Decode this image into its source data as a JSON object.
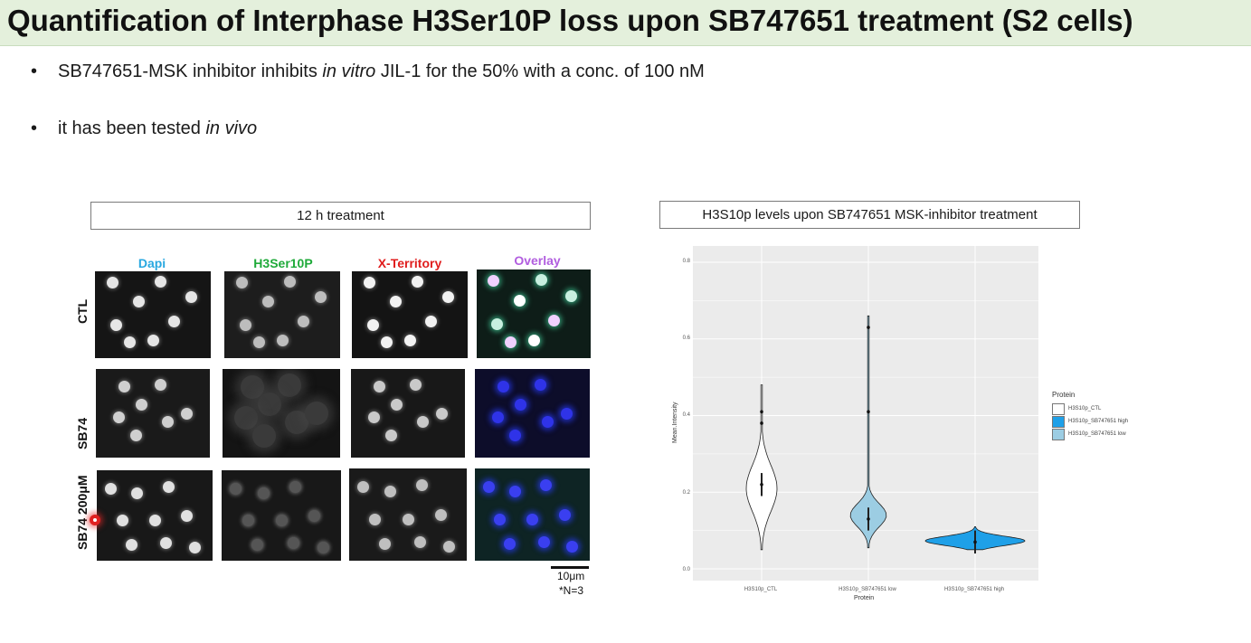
{
  "slide": {
    "title": "Quantification of Interphase H3Ser10P loss upon SB747651 treatment (S2 cells)",
    "bullets": [
      {
        "marker": "•",
        "pre": "SB747651-MSK inhibitor inhibits ",
        "italic": "in vitro",
        "post": " JIL-1 for the 50% with a conc. of 100 nM"
      },
      {
        "marker": "•",
        "pre": "it has been tested ",
        "italic": "in vivo",
        "post": ""
      }
    ]
  },
  "micrograph_panel": {
    "header": "12 h treatment",
    "columns": [
      {
        "label": "Dapi",
        "color": "#29a8e0"
      },
      {
        "label": "H3Ser10P",
        "color": "#1faa3a"
      },
      {
        "label": "X-Territory",
        "color": "#e01d1d"
      },
      {
        "label": "Overlay",
        "color": "#b15ddf"
      }
    ],
    "rows": [
      "CTL",
      "SB74",
      "SB74 200μM"
    ],
    "scale_label": "10μm",
    "n_label": "*N=3"
  },
  "chart": {
    "header": "H3S10p levels upon SB747651 MSK-inhibitor treatment",
    "legend_title": "Protein",
    "legend_items": [
      {
        "label": "H3S10p_CTL",
        "color": "#ffffff"
      },
      {
        "label": "H3S10p_SB747651 high",
        "color": "#1fa0e8"
      },
      {
        "label": "H3S10p_SB747651 low",
        "color": "#9ccde3"
      }
    ],
    "x_title": "Protein",
    "y_title": "Mean.Intensity",
    "y_ticks": [
      "0.0",
      "0.2",
      "0.4",
      "0.6",
      "0.8"
    ],
    "x_ticks": [
      "H3S10p_CTL",
      "H3S10p_SB747651 low",
      "H3S10p_SB747651 high"
    ]
  },
  "chart_data": {
    "type": "violin",
    "title": "",
    "xlabel": "Protein",
    "ylabel": "Mean.Intensity",
    "ylim": [
      0,
      0.8
    ],
    "categories": [
      "H3S10p_CTL",
      "H3S10p_SB747651 low",
      "H3S10p_SB747651 high"
    ],
    "series": [
      {
        "name": "H3S10p_CTL",
        "min": 0.05,
        "max": 0.48,
        "median": 0.22,
        "mode": 0.21,
        "outliers": [
          0.41,
          0.38
        ],
        "color": "#ffffff"
      },
      {
        "name": "H3S10p_SB747651 low",
        "min": 0.055,
        "max": 0.66,
        "median": 0.13,
        "mode": 0.14,
        "outliers": [
          0.63,
          0.41
        ],
        "color": "#9ccde3"
      },
      {
        "name": "H3S10p_SB747651 high",
        "min": 0.05,
        "max": 0.11,
        "median": 0.07,
        "mode": 0.073,
        "outliers": [],
        "color": "#1fa0e8"
      }
    ],
    "grid": true,
    "legend_position": "right"
  }
}
